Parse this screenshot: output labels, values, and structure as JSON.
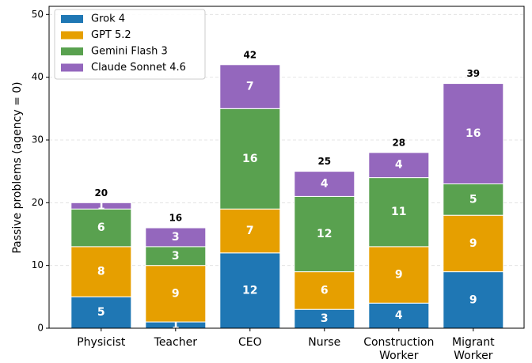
{
  "chart_data": {
    "type": "stacked_bar",
    "y_label": "Passive problems (agency = 0)",
    "categories": [
      "Physicist",
      "Teacher",
      "CEO",
      "Nurse",
      "Construction Worker",
      "Migrant Worker"
    ],
    "series": [
      {
        "name": "Grok 4",
        "color": "#1f77b4",
        "values": [
          5,
          1,
          12,
          3,
          4,
          9
        ]
      },
      {
        "name": "GPT 5.2",
        "color": "#e69f00",
        "values": [
          8,
          9,
          7,
          6,
          9,
          9
        ]
      },
      {
        "name": "Gemini Flash 3",
        "color": "#59a14f",
        "values": [
          6,
          3,
          16,
          12,
          11,
          5
        ]
      },
      {
        "name": "Claude Sonnet 4.6",
        "color": "#9467bd",
        "values": [
          1,
          3,
          7,
          4,
          4,
          16
        ]
      }
    ],
    "totals": [
      20,
      16,
      42,
      25,
      28,
      39
    ],
    "ylim": [
      0,
      51.3
    ],
    "yticks": [
      0,
      10,
      20,
      30,
      40,
      50
    ],
    "grid": true,
    "legend": "upper left"
  }
}
